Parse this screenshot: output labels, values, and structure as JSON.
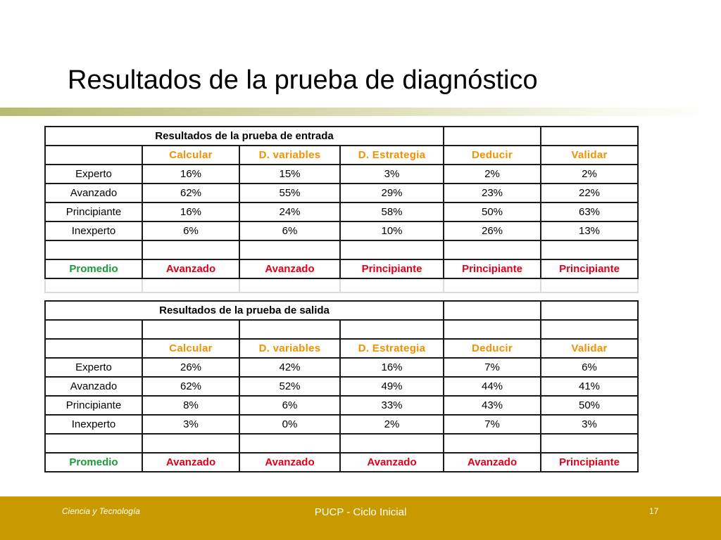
{
  "slide": {
    "title": "Resultados de la prueba de diagnóstico"
  },
  "entrada": {
    "title": "Resultados de la prueba de entrada",
    "headers": [
      "Calcular",
      "D. variables",
      "D. Estrategia",
      "Deducir",
      "Validar"
    ],
    "rows": [
      {
        "label": "Experto",
        "values": [
          "16%",
          "15%",
          "3%",
          "2%",
          "2%"
        ]
      },
      {
        "label": "Avanzado",
        "values": [
          "62%",
          "55%",
          "29%",
          "23%",
          "22%"
        ]
      },
      {
        "label": "Principiante",
        "values": [
          "16%",
          "24%",
          "58%",
          "50%",
          "63%"
        ]
      },
      {
        "label": "Inexperto",
        "values": [
          "6%",
          "6%",
          "10%",
          "26%",
          "13%"
        ]
      }
    ],
    "average": {
      "label": "Promedio",
      "values": [
        "Avanzado",
        "Avanzado",
        "Principiante",
        "Principiante",
        "Principiante"
      ]
    }
  },
  "salida": {
    "title": "Resultados de la prueba de salida",
    "headers": [
      "Calcular",
      "D. variables",
      "D. Estrategia",
      "Deducir",
      "Validar"
    ],
    "rows": [
      {
        "label": "Experto",
        "values": [
          "26%",
          "42%",
          "16%",
          "7%",
          "6%"
        ]
      },
      {
        "label": "Avanzado",
        "values": [
          "62%",
          "52%",
          "49%",
          "44%",
          "41%"
        ]
      },
      {
        "label": "Principiante",
        "values": [
          "8%",
          "6%",
          "33%",
          "43%",
          "50%"
        ]
      },
      {
        "label": "Inexperto",
        "values": [
          "3%",
          "0%",
          "2%",
          "7%",
          "3%"
        ]
      }
    ],
    "average": {
      "label": "Promedio",
      "values": [
        "Avanzado",
        "Avanzado",
        "Avanzado",
        "Avanzado",
        "Principiante"
      ]
    }
  },
  "footer": {
    "left": "Ciencia y Tecnología",
    "center": "PUCP - Ciclo Inicial",
    "page": "17"
  },
  "colors": {
    "header_orange": "#f29100",
    "average_green": "#1a9a3a",
    "average_red": "#e0001b",
    "footer_gold": "#c89a00"
  }
}
